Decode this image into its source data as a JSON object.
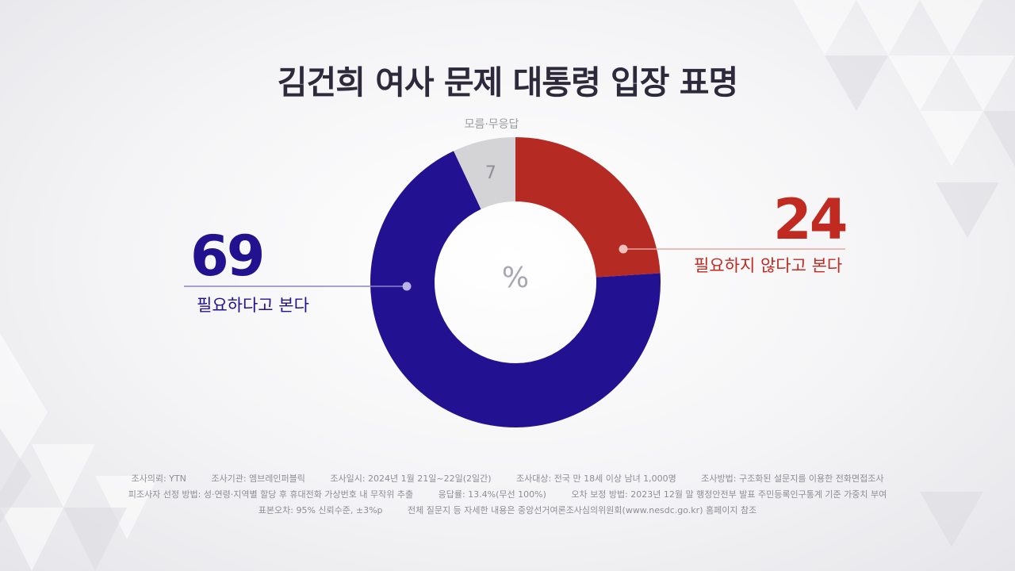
{
  "title": "김건희 여사 문제 대통령 입장 표명",
  "chart_data": {
    "type": "pie",
    "unit": "%",
    "categories": [
      "필요하지 않다고 본다",
      "필요하다고 본다",
      "모름·무응답"
    ],
    "values": [
      24,
      69,
      7
    ],
    "colors": [
      "#b52a22",
      "#221190",
      "#d4d4d6"
    ],
    "labels": [
      {
        "category": "필요하다고 본다",
        "value": "69"
      },
      {
        "category": "필요하지 않다고 본다",
        "value": "24"
      },
      {
        "category": "모름·무응답",
        "value": "7"
      }
    ]
  },
  "footer": {
    "line1": [
      "조사의뢰: YTN",
      "조사기관: 엠브레인퍼블릭",
      "조사일시: 2024년 1월 21일~22일(2일간)",
      "조사대상: 전국 만 18세 이상 남녀 1,000명",
      "조사방법: 구조화된 설문지를 이용한 전화면접조사"
    ],
    "line2": [
      "피조사자 선정 방법: 성·연령·지역별 할당 후 휴대전화 가상번호 내 무작위 추출",
      "응답률: 13.4%(무선 100%)",
      "오차 보정 방법: 2023년 12월 말 행정안전부 발표 주민등록인구통계 기준 가중치 부여"
    ],
    "line3": [
      "표본오차: 95% 신뢰수준, ±3%p",
      "전체 질문지 등 자세한 내용은 중앙선거여론조사심의위원회(www.nesdc.go.kr) 홈페이지 참조"
    ]
  }
}
